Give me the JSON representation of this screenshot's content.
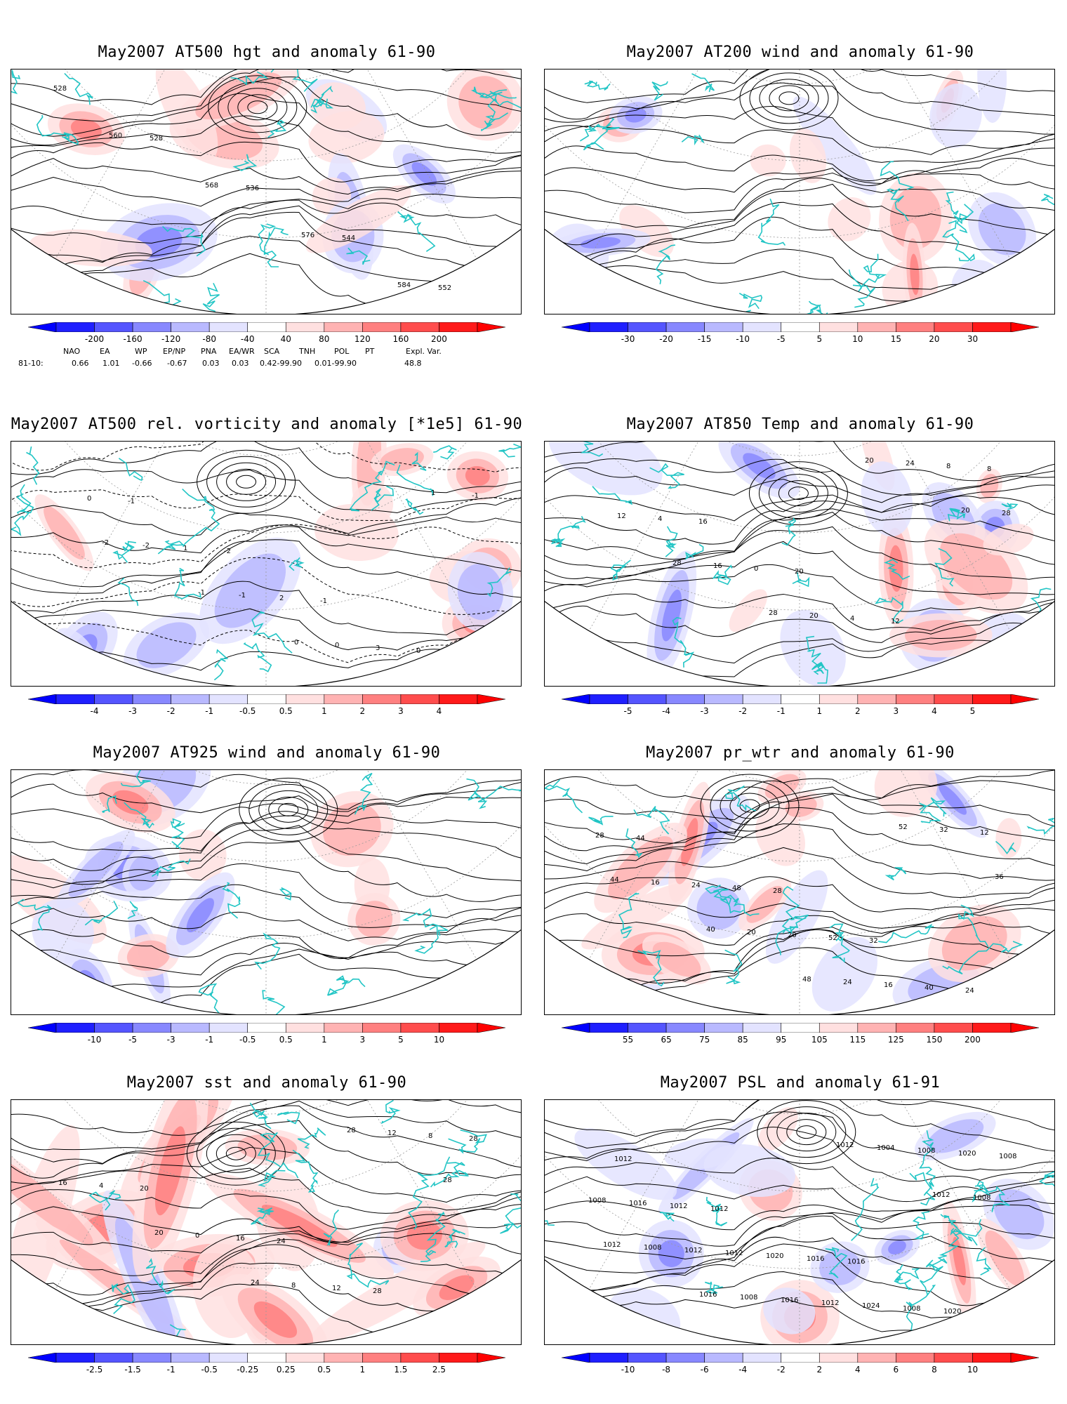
{
  "colors": {
    "coast": "#22c5c5",
    "contour": "#000000",
    "blue_scale": [
      "#1f1fff",
      "#5555ff",
      "#8888ff",
      "#b9b9ff",
      "#e3e3ff"
    ],
    "red_scale": [
      "#ffe0e0",
      "#ffb3b3",
      "#ff8080",
      "#ff4d4d",
      "#ff1a1a"
    ]
  },
  "panels": [
    {
      "title": "May2007 AT500 hgt and anomaly 61-90",
      "field": "geopotential-height",
      "colorbar_ticks": [
        "-200",
        "-160",
        "-120",
        "-80",
        "-40",
        "40",
        "80",
        "120",
        "160",
        "200"
      ],
      "contour_labels": [
        "528",
        "528",
        "536",
        "544",
        "552",
        "560",
        "568",
        "576",
        "584"
      ],
      "indices": {
        "names": [
          "NAO",
          "EA",
          "WP",
          "EP/NP",
          "PNA",
          "EA/WR",
          "SCA",
          "TNH",
          "POL",
          "PT",
          "Expl. Var."
        ],
        "period": "81-10:",
        "values": [
          "0.66",
          "1.01",
          "-0.66",
          "-0.67",
          "0.03",
          "0.03",
          "0.42-99.90",
          "0.01-99.90",
          "48.8"
        ]
      }
    },
    {
      "title": "May2007 AT200 wind and anomaly 61-90",
      "field": "wind-streamlines",
      "colorbar_ticks": [
        "-30",
        "-20",
        "-15",
        "-10",
        "-5",
        "5",
        "10",
        "15",
        "20",
        "30"
      ],
      "contour_labels": []
    },
    {
      "title": "May2007 AT500 rel. vorticity and anomaly [*1e5] 61-90",
      "field": "vorticity",
      "colorbar_ticks": [
        "-4",
        "-3",
        "-2",
        "-1",
        "-0.5",
        "0.5",
        "1",
        "2",
        "3",
        "4"
      ],
      "contour_labels": [
        "-1",
        "-2",
        "-1",
        "0",
        "0",
        "1",
        "2",
        "3",
        "-1",
        "-2",
        "-1",
        "0",
        "1",
        "-2",
        "-1",
        "0"
      ]
    },
    {
      "title": "May2007 AT850 Temp and anomaly 61-90",
      "field": "temperature",
      "colorbar_ticks": [
        "-5",
        "-4",
        "-3",
        "-2",
        "-1",
        "1",
        "2",
        "3",
        "4",
        "5"
      ],
      "contour_labels": [
        "16",
        "20",
        "12",
        "8",
        "4",
        "0",
        "4",
        "8",
        "12",
        "16",
        "20",
        "24",
        "28",
        "28",
        "28",
        "20",
        "20"
      ]
    },
    {
      "title": "May2007 AT925 wind and anomaly 61-90",
      "field": "wind-streamlines",
      "colorbar_ticks": [
        "-10",
        "-5",
        "-3",
        "-1",
        "-0.5",
        "0.5",
        "1",
        "3",
        "5",
        "10"
      ],
      "contour_labels": []
    },
    {
      "title": "May2007 pr_wtr and anomaly 61-90",
      "field": "precipitable-water",
      "colorbar_ticks": [
        "55",
        "65",
        "75",
        "85",
        "95",
        "105",
        "115",
        "125",
        "150",
        "200"
      ],
      "contour_labels": [
        "28",
        "32",
        "24",
        "44",
        "48",
        "52",
        "40",
        "28",
        "24",
        "20",
        "16",
        "12",
        "16",
        "20",
        "24",
        "32",
        "44",
        "40",
        "48",
        "52",
        "36"
      ]
    },
    {
      "title": "May2007 sst and anomaly 61-90",
      "field": "sst",
      "colorbar_ticks": [
        "-2.5",
        "-1.5",
        "-1",
        "-0.5",
        "-0.25",
        "0.25",
        "0.5",
        "1",
        "1.5",
        "2.5"
      ],
      "contour_labels": [
        "24",
        "28",
        "28",
        "20",
        "16",
        "12",
        "8",
        "4",
        "0",
        "8",
        "12",
        "16",
        "20",
        "24",
        "28",
        "28"
      ]
    },
    {
      "title": "May2007 PSL and anomaly 61-91",
      "field": "sea-level-pressure",
      "colorbar_ticks": [
        "-10",
        "-8",
        "-6",
        "-4",
        "-2",
        "2",
        "4",
        "6",
        "8",
        "10"
      ],
      "contour_labels": [
        "1016",
        "1020",
        "1012",
        "1012",
        "1016",
        "1008",
        "1008",
        "1012",
        "1020",
        "1024",
        "1020",
        "1016",
        "1012",
        "1012",
        "1008",
        "1008",
        "1012",
        "1016",
        "1004",
        "1008",
        "1008",
        "1008",
        "1012",
        "1012",
        "1012",
        "1016"
      ]
    }
  ]
}
